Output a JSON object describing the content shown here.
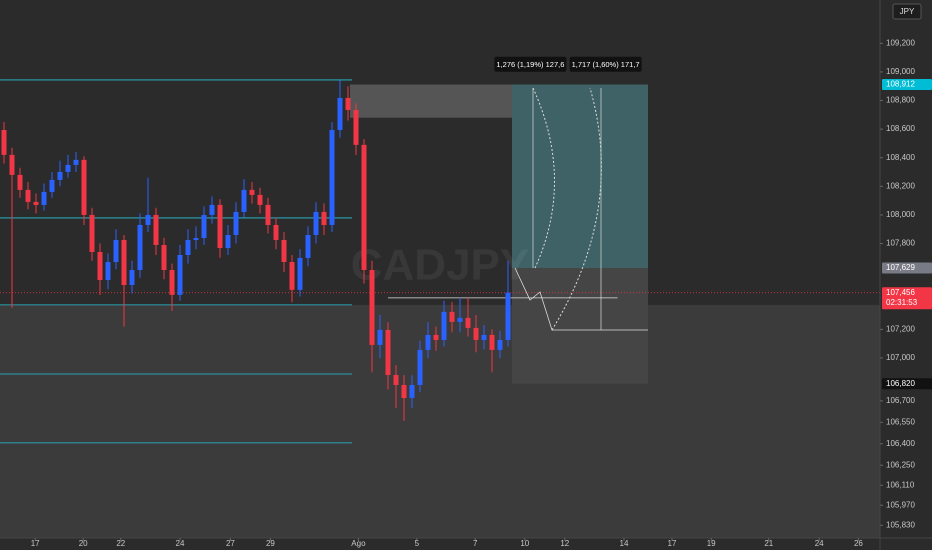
{
  "chart_data": {
    "type": "candlestick",
    "symbol": "CADJPY",
    "currency": "JPY",
    "open": [
      108.594,
      108.42,
      108.28,
      108.175,
      108.091,
      108.07,
      108.161,
      108.245,
      108.301,
      108.35,
      108.385,
      108.0,
      107.741,
      107.545,
      107.671,
      107.825,
      107.51,
      107.615,
      107.93,
      108.0,
      107.79,
      107.615,
      107.441,
      107.72,
      107.825,
      107.839,
      108.0,
      108.07,
      107.769,
      107.86,
      108.021,
      108.175,
      108.14,
      108.07,
      107.93,
      107.825,
      107.671,
      107.476,
      107.699,
      107.86,
      108.021,
      107.93,
      108.594,
      108.818,
      108.734,
      108.49,
      107.615,
      107.091,
      107.196,
      106.881,
      106.811,
      106.72,
      106.811,
      107.056,
      107.161,
      107.126,
      107.322,
      107.252,
      107.28,
      107.21,
      107.126,
      107.161,
      107.056,
      107.126
    ],
    "high": [
      108.65,
      108.47,
      108.33,
      108.23,
      108.15,
      108.22,
      108.3,
      108.38,
      108.42,
      108.44,
      108.41,
      108.05,
      107.8,
      107.73,
      107.9,
      107.86,
      107.68,
      108.01,
      108.26,
      108.05,
      107.84,
      107.66,
      107.79,
      107.9,
      107.92,
      108.06,
      108.13,
      108.11,
      107.93,
      108.09,
      108.25,
      108.23,
      108.19,
      108.12,
      107.98,
      107.88,
      107.72,
      107.76,
      107.92,
      108.09,
      108.08,
      108.65,
      108.94,
      108.9,
      108.78,
      108.53,
      107.68,
      107.3,
      107.25,
      106.95,
      106.88,
      106.88,
      107.12,
      107.25,
      107.22,
      107.4,
      107.39,
      107.42,
      107.42,
      107.3,
      107.23,
      107.2,
      107.19,
      107.68
    ],
    "low": [
      108.36,
      107.35,
      108.12,
      108.04,
      108.01,
      108.03,
      108.12,
      108.2,
      108.26,
      108.3,
      107.93,
      107.68,
      107.44,
      107.48,
      107.62,
      107.22,
      107.45,
      107.56,
      107.88,
      107.72,
      107.55,
      107.33,
      107.4,
      107.66,
      107.76,
      107.79,
      107.94,
      107.7,
      107.72,
      107.8,
      107.98,
      108.08,
      108.01,
      107.87,
      107.76,
      107.6,
      107.39,
      107.43,
      107.64,
      107.8,
      107.86,
      107.88,
      108.54,
      108.66,
      108.42,
      107.52,
      106.9,
      107.0,
      106.78,
      106.65,
      106.56,
      106.65,
      106.76,
      107.0,
      107.05,
      107.08,
      107.18,
      107.18,
      107.15,
      107.04,
      107.06,
      106.9,
      107.0,
      107.08
    ],
    "close": [
      108.42,
      108.28,
      108.175,
      108.091,
      108.07,
      108.161,
      108.245,
      108.301,
      108.35,
      108.385,
      108.0,
      107.741,
      107.545,
      107.671,
      107.825,
      107.51,
      107.615,
      107.93,
      108.0,
      107.79,
      107.615,
      107.441,
      107.72,
      107.825,
      107.839,
      108.0,
      108.07,
      107.769,
      107.86,
      108.021,
      108.175,
      108.14,
      108.07,
      107.93,
      107.825,
      107.671,
      107.476,
      107.699,
      107.86,
      108.021,
      107.93,
      108.594,
      108.818,
      108.734,
      108.49,
      107.615,
      107.091,
      107.196,
      106.881,
      106.811,
      106.72,
      106.811,
      107.056,
      107.161,
      107.126,
      107.322,
      107.252,
      107.28,
      107.21,
      107.126,
      107.161,
      107.056,
      107.126,
      107.456
    ],
    "up_color": "#2962ff",
    "down_color": "#f23645",
    "xlim": [
      0,
      110
    ],
    "ylim": [
      105.741,
      109.503
    ],
    "xticks": [
      {
        "value": 4.4,
        "label": "17"
      },
      {
        "value": 10.4,
        "label": "20"
      },
      {
        "value": 15.1,
        "label": "22"
      },
      {
        "value": 22.5,
        "label": "24"
      },
      {
        "value": 28.8,
        "label": "27"
      },
      {
        "value": 33.8,
        "label": "29"
      },
      {
        "value": 44.8,
        "label": "Ago"
      },
      {
        "value": 52.1,
        "label": "5"
      },
      {
        "value": 59.4,
        "label": "7"
      },
      {
        "value": 65.6,
        "label": "10"
      },
      {
        "value": 70.6,
        "label": "12"
      },
      {
        "value": 78,
        "label": "14"
      },
      {
        "value": 84,
        "label": "17"
      },
      {
        "value": 88.9,
        "label": "19"
      },
      {
        "value": 96.1,
        "label": "21"
      },
      {
        "value": 102.4,
        "label": "24"
      },
      {
        "value": 107.3,
        "label": "26"
      }
    ],
    "yticks": [
      {
        "value": 109.2,
        "label": "109,200"
      },
      {
        "value": 109.0,
        "label": "109,000"
      },
      {
        "value": 108.8,
        "label": "108,800"
      },
      {
        "value": 108.6,
        "label": "108,600"
      },
      {
        "value": 108.4,
        "label": "108,400"
      },
      {
        "value": 108.2,
        "label": "108,200"
      },
      {
        "value": 108.0,
        "label": "108,000"
      },
      {
        "value": 107.8,
        "label": "107,800"
      },
      {
        "value": 107.2,
        "label": "107,200"
      },
      {
        "value": 107.0,
        "label": "107,000"
      },
      {
        "value": 106.7,
        "label": "106,700"
      },
      {
        "value": 106.55,
        "label": "106,550"
      },
      {
        "value": 106.4,
        "label": "106,400"
      },
      {
        "value": 106.25,
        "label": "106,250"
      },
      {
        "value": 106.11,
        "label": "106,110"
      },
      {
        "value": 105.97,
        "label": "105,970"
      },
      {
        "value": 105.83,
        "label": "105,830"
      }
    ],
    "grid": false,
    "zones": [
      {
        "from": 105.741,
        "to": 107.371,
        "x": [
          0,
          110
        ],
        "color": "#3b3b3b"
      },
      {
        "from": 108.68,
        "to": 108.912,
        "x": [
          43.75,
          75.9
        ],
        "color": "#555555"
      },
      {
        "from": 107.629,
        "to": 108.912,
        "x": [
          64,
          81
        ],
        "color": "#3e6265"
      },
      {
        "from": 106.82,
        "to": 107.629,
        "x": [
          64,
          81
        ],
        "color": "#454545"
      }
    ],
    "levels": [
      {
        "value": 108.944,
        "x": [
          0,
          44
        ],
        "color": "#26c6da"
      },
      {
        "value": 107.979,
        "x": [
          0,
          44
        ],
        "color": "#26c6da"
      },
      {
        "value": 107.371,
        "x": [
          0,
          44
        ],
        "color": "#26c6da"
      },
      {
        "value": 106.888,
        "x": [
          0,
          44
        ],
        "color": "#26c6da"
      },
      {
        "value": 106.406,
        "x": [
          0,
          44
        ],
        "color": "#26c6da"
      },
      {
        "value": 107.42,
        "x": [
          48.5,
          77.2
        ],
        "color": "#e0e0e0"
      }
    ],
    "price_line": {
      "value": 107.456,
      "color": "#f23645"
    },
    "price_labels": [
      {
        "value": 108.912,
        "label": "108,912",
        "color": "#00bcd4"
      },
      {
        "value": 107.629,
        "label": "107,629",
        "color": "#787b86"
      },
      {
        "value": 107.456,
        "label": "107,456",
        "sub": "02:31:53",
        "color": "#f23645"
      },
      {
        "value": 106.82,
        "label": "106,820",
        "color": "#111111"
      }
    ],
    "annotations": [
      {
        "text": "1,276 (1,19%) 127,6",
        "x": 66.3,
        "y": 109.05
      },
      {
        "text": "1,717 (1,60%) 171,7",
        "x": 75.7,
        "y": 109.05
      }
    ]
  }
}
